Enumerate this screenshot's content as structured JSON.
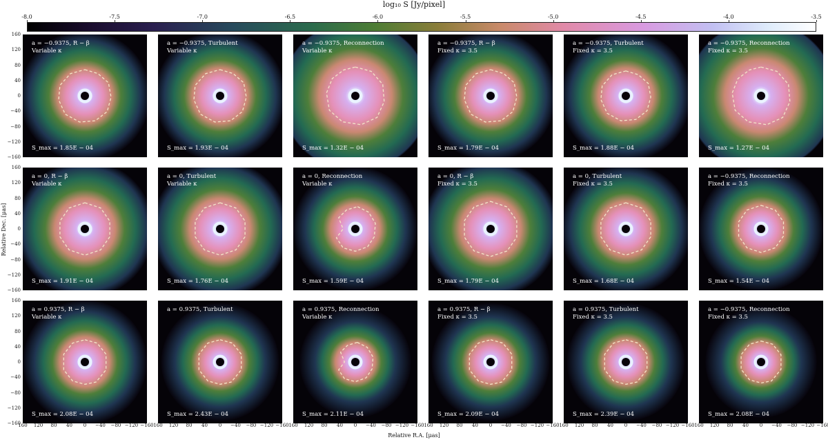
{
  "chart_data": {
    "type": "heatmap",
    "title": "log₁₀ S [Jy/pixel]",
    "colorbar": {
      "range": [
        -8.0,
        -3.5
      ],
      "ticks": [
        "-8.0",
        "-7.5",
        "-7.0",
        "-6.5",
        "-6.0",
        "-5.5",
        "-5.0",
        "-4.5",
        "-4.0",
        "-3.5"
      ],
      "colors": [
        "#000000",
        "#2a1f4f",
        "#2b6b4c",
        "#8a7d3a",
        "#e18aa8",
        "#d99ae0",
        "#dfecfb",
        "#ffffff"
      ]
    },
    "xlabel": "Relative R.A. [μas]",
    "ylabel": "Relative Dec. [μas]",
    "xlim": [
      160,
      -160
    ],
    "ylim": [
      -160,
      160
    ],
    "x_ticks": [
      "160",
      "120",
      "80",
      "40",
      "0",
      "−40",
      "−80",
      "−120",
      "−160"
    ],
    "y_ticks": [
      "160",
      "120",
      "80",
      "40",
      "0",
      "−40",
      "−80",
      "−120",
      "−160"
    ],
    "panels": [
      {
        "label1": "a = −0.9375, R − β",
        "label2": "Variable κ",
        "smax": "S_max = 1.85E − 04",
        "row": 0,
        "col": 0,
        "ring_scale": 1.0,
        "outer_scale": 1.0,
        "shape": 0
      },
      {
        "label1": "a = −0.9375, Turbulent",
        "label2": "Variable κ",
        "smax": "S_max = 1.93E − 04",
        "row": 0,
        "col": 1,
        "ring_scale": 1.0,
        "outer_scale": 1.0,
        "shape": 0
      },
      {
        "label1": "a = −0.9375, Reconnection",
        "label2": "Variable κ",
        "smax": "S_max = 1.32E − 04",
        "row": 0,
        "col": 2,
        "ring_scale": 1.1,
        "outer_scale": 1.15,
        "shape": 1
      },
      {
        "label1": "a = −0.9375, R − β",
        "label2": "Fixed κ = 3.5",
        "smax": "S_max = 1.79E − 04",
        "row": 0,
        "col": 3,
        "ring_scale": 1.0,
        "outer_scale": 1.0,
        "shape": 0
      },
      {
        "label1": "a = −0.9375, Turbulent",
        "label2": "Fixed κ = 3.5",
        "smax": "S_max = 1.88E − 04",
        "row": 0,
        "col": 4,
        "ring_scale": 0.95,
        "outer_scale": 1.0,
        "shape": 0
      },
      {
        "label1": "a = −0.9375, Reconnection",
        "label2": "Fixed κ = 3.5",
        "smax": "S_max = 1.27E − 04",
        "row": 0,
        "col": 5,
        "ring_scale": 1.1,
        "outer_scale": 1.15,
        "shape": 1
      },
      {
        "label1": "a = 0, R − β",
        "label2": "Variable κ",
        "smax": "S_max = 1.91E − 04",
        "row": 1,
        "col": 0,
        "ring_scale": 1.0,
        "outer_scale": 1.05,
        "shape": 2
      },
      {
        "label1": "a = 0, Turbulent",
        "label2": "Variable κ",
        "smax": "S_max = 1.76E − 04",
        "row": 1,
        "col": 1,
        "ring_scale": 1.0,
        "outer_scale": 1.05,
        "shape": 2
      },
      {
        "label1": "a = 0, Reconnection",
        "label2": "Variable κ",
        "smax": "S_max = 1.59E − 04",
        "row": 1,
        "col": 2,
        "ring_scale": 0.85,
        "outer_scale": 0.95,
        "shape": 3
      },
      {
        "label1": "a = 0, R − β",
        "label2": "Fixed κ = 3.5",
        "smax": "S_max = 1.79E − 04",
        "row": 1,
        "col": 3,
        "ring_scale": 1.05,
        "outer_scale": 1.05,
        "shape": 2
      },
      {
        "label1": "a = 0, Turbulent",
        "label2": "Fixed κ = 3.5",
        "smax": "S_max = 1.68E − 04",
        "row": 1,
        "col": 4,
        "ring_scale": 1.0,
        "outer_scale": 1.0,
        "shape": 2
      },
      {
        "label1": "a = −0.9375, Reconnection",
        "label2": "Fixed κ = 3.5",
        "smax": "S_max = 1.54E − 04",
        "row": 1,
        "col": 5,
        "ring_scale": 0.9,
        "outer_scale": 0.95,
        "shape": 2
      },
      {
        "label1": "a = 0.9375, R − β",
        "label2": "Variable κ",
        "smax": "S_max = 2.08E − 04",
        "row": 2,
        "col": 0,
        "ring_scale": 0.85,
        "outer_scale": 0.95,
        "shape": 4
      },
      {
        "label1": "a = 0.9375, Turbulent",
        "label2": "",
        "smax": "S_max = 2.43E − 04",
        "row": 2,
        "col": 1,
        "ring_scale": 0.85,
        "outer_scale": 0.9,
        "shape": 4
      },
      {
        "label1": "a = 0.9375, Reconnection",
        "label2": "Variable κ",
        "smax": "S_max = 2.11E − 04",
        "row": 2,
        "col": 2,
        "ring_scale": 0.75,
        "outer_scale": 0.85,
        "shape": 3
      },
      {
        "label1": "a = 0.9375, R − β",
        "label2": "Fixed κ = 3.5",
        "smax": "S_max = 2.09E − 04",
        "row": 2,
        "col": 3,
        "ring_scale": 0.85,
        "outer_scale": 0.9,
        "shape": 4
      },
      {
        "label1": "a = 0.9375, Turbulent",
        "label2": "Fixed κ = 3.5",
        "smax": "S_max = 2.39E − 04",
        "row": 2,
        "col": 4,
        "ring_scale": 0.85,
        "outer_scale": 0.9,
        "shape": 4
      },
      {
        "label1": "a = −0.9375, Reconnection",
        "label2": "Fixed κ = 3.5",
        "smax": "S_max = 2.08E − 04",
        "row": 2,
        "col": 5,
        "ring_scale": 0.8,
        "outer_scale": 0.85,
        "shape": 4
      }
    ]
  }
}
